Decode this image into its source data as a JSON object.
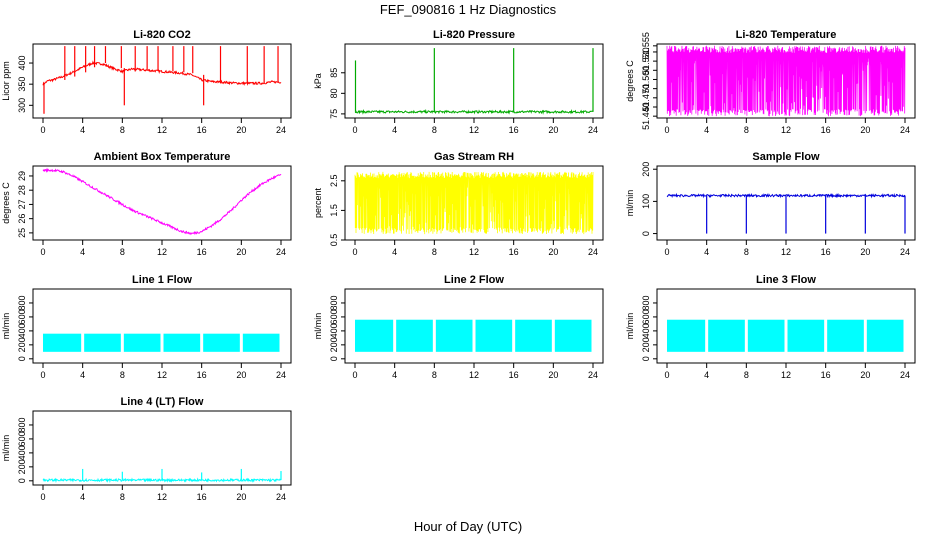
{
  "figure": {
    "title": "FEF_090816  1 Hz Diagnostics",
    "xlabel": "Hour of Day (UTC)"
  },
  "chart_data": [
    {
      "type": "line",
      "title": "Li-820 CO2",
      "ylabel": "Licor ppm",
      "color": "#ff0000",
      "xticks": [
        "0",
        "4",
        "8",
        "12",
        "16",
        "20",
        "24"
      ],
      "yticks": [
        300,
        350,
        400
      ],
      "xlim": [
        0,
        24
      ],
      "ylim": [
        270,
        445
      ],
      "x": [
        0,
        0.5,
        1,
        2,
        3,
        4,
        5,
        6,
        7,
        8,
        9,
        10,
        11,
        12,
        13,
        14,
        15,
        16,
        17,
        18,
        19,
        20,
        21,
        22,
        23,
        24
      ],
      "y": [
        350,
        358,
        360,
        368,
        378,
        390,
        400,
        398,
        388,
        380,
        386,
        384,
        382,
        380,
        378,
        376,
        372,
        360,
        356,
        355,
        353,
        352,
        352,
        352,
        355,
        355
      ],
      "spikes": [
        {
          "x": 0.1,
          "y": 280
        },
        {
          "x": 2.2,
          "y": 440
        },
        {
          "x": 3.2,
          "y": 440
        },
        {
          "x": 4.3,
          "y": 440
        },
        {
          "x": 5.2,
          "y": 440
        },
        {
          "x": 6.3,
          "y": 440
        },
        {
          "x": 7.9,
          "y": 440
        },
        {
          "x": 8.2,
          "y": 300
        },
        {
          "x": 9.3,
          "y": 440
        },
        {
          "x": 10.5,
          "y": 440
        },
        {
          "x": 11.6,
          "y": 440
        },
        {
          "x": 13.1,
          "y": 440
        },
        {
          "x": 14.2,
          "y": 440
        },
        {
          "x": 15.1,
          "y": 440
        },
        {
          "x": 16.2,
          "y": 300
        },
        {
          "x": 17.9,
          "y": 440
        },
        {
          "x": 20.6,
          "y": 440
        },
        {
          "x": 22.3,
          "y": 440
        },
        {
          "x": 23.7,
          "y": 440
        }
      ]
    },
    {
      "type": "line",
      "title": "Li-820 Pressure",
      "ylabel": "kPa",
      "color": "#00aa00",
      "xticks": [
        "0",
        "4",
        "8",
        "12",
        "16",
        "20",
        "24"
      ],
      "yticks": [
        75,
        80,
        85
      ],
      "xlim": [
        0,
        24
      ],
      "ylim": [
        74,
        92
      ],
      "x": [
        0,
        24
      ],
      "y": [
        75.5,
        75.5
      ],
      "spikes": [
        {
          "x": 0.05,
          "y": 88
        },
        {
          "x": 8,
          "y": 91
        },
        {
          "x": 16,
          "y": 91
        },
        {
          "x": 24,
          "y": 91
        }
      ]
    },
    {
      "type": "line",
      "title": "Li-820 Temperature",
      "ylabel": "degrees C",
      "color": "#ff00ff",
      "xticks": [
        "0",
        "4",
        "8",
        "12",
        "16",
        "20",
        "24"
      ],
      "yticks": [
        51.44,
        51.455,
        51.47,
        51.485,
        51.5,
        51.515,
        51.53,
        51.545,
        51.555
      ],
      "yticks_labeled": [
        "51.440",
        "51.470",
        "51.500",
        "51.530",
        "51.555"
      ],
      "xlim": [
        0,
        24
      ],
      "ylim": [
        51.437,
        51.558
      ],
      "y_low": 51.44,
      "y_high": 51.555
    },
    {
      "type": "line",
      "title": "Ambient Box Temperature",
      "ylabel": "degrees C",
      "color": "#ff00ff",
      "xticks": [
        "0",
        "4",
        "8",
        "12",
        "16",
        "20",
        "24"
      ],
      "yticks": [
        25,
        26,
        27,
        28,
        29
      ],
      "xlim": [
        0,
        24
      ],
      "ylim": [
        24.5,
        29.7
      ],
      "x": [
        0,
        1,
        2,
        3,
        4,
        5,
        6,
        7,
        8,
        9,
        10,
        11,
        12,
        13,
        14,
        15,
        16,
        17,
        18,
        19,
        20,
        21,
        22,
        23,
        24
      ],
      "y": [
        29.4,
        29.4,
        29.3,
        29.0,
        28.6,
        28.2,
        27.8,
        27.4,
        27.0,
        26.6,
        26.3,
        26.0,
        25.7,
        25.4,
        25.1,
        24.95,
        25.1,
        25.5,
        26.0,
        26.6,
        27.3,
        27.9,
        28.4,
        28.8,
        29.1
      ]
    },
    {
      "type": "line",
      "title": "Gas Stream RH",
      "ylabel": "percent",
      "color": "#ffff00",
      "xticks": [
        "0",
        "4",
        "8",
        "12",
        "16",
        "20",
        "24"
      ],
      "yticks": [
        0.5,
        1.5,
        2.5
      ],
      "xlim": [
        0,
        24
      ],
      "ylim": [
        0.5,
        3.0
      ],
      "y_low": 0.7,
      "y_high": 2.8
    },
    {
      "type": "line",
      "title": "Sample Flow",
      "ylabel": "ml/min",
      "color": "#0000dd",
      "xticks": [
        "0",
        "4",
        "8",
        "12",
        "16",
        "20",
        "24"
      ],
      "yticks": [
        0,
        100,
        200
      ],
      "xlim": [
        0,
        24
      ],
      "ylim": [
        -20,
        210
      ],
      "x": [
        0,
        24
      ],
      "y": [
        118,
        118
      ],
      "dips": [
        {
          "x": 4,
          "y": 0
        },
        {
          "x": 8,
          "y": 0
        },
        {
          "x": 12,
          "y": 0
        },
        {
          "x": 16,
          "y": 0
        },
        {
          "x": 20,
          "y": 0
        },
        {
          "x": 24,
          "y": 0
        }
      ]
    },
    {
      "type": "area",
      "title": "Line 1 Flow",
      "ylabel": "ml/min",
      "color": "#00ffff",
      "xticks": [
        "0",
        "4",
        "8",
        "12",
        "16",
        "20",
        "24"
      ],
      "yticks": [
        0,
        200,
        400,
        600,
        800
      ],
      "xlim": [
        0,
        24
      ],
      "ylim": [
        -60,
        1000
      ],
      "y_low": 100,
      "y_high": 360,
      "gaps": [
        4,
        8,
        12,
        16,
        20
      ]
    },
    {
      "type": "area",
      "title": "Line 2 Flow",
      "ylabel": "ml/min",
      "color": "#00ffff",
      "xticks": [
        "0",
        "4",
        "8",
        "12",
        "16",
        "20",
        "24"
      ],
      "yticks": [
        0,
        200,
        400,
        600,
        800
      ],
      "xlim": [
        0,
        24
      ],
      "ylim": [
        -60,
        1000
      ],
      "y_low": 100,
      "y_high": 560,
      "gaps": [
        4,
        8,
        12,
        16,
        20
      ]
    },
    {
      "type": "area",
      "title": "Line 3 Flow",
      "ylabel": "ml/min",
      "color": "#00ffff",
      "xticks": [
        "0",
        "4",
        "8",
        "12",
        "16",
        "20",
        "24"
      ],
      "yticks": [
        0,
        200,
        400,
        600,
        800
      ],
      "xlim": [
        0,
        24
      ],
      "ylim": [
        -60,
        1000
      ],
      "y_low": 100,
      "y_high": 560,
      "gaps": [
        4,
        8,
        12,
        16,
        20
      ]
    },
    {
      "type": "line",
      "title": "Line 4 (LT) Flow",
      "ylabel": "ml/min",
      "color": "#00ffff",
      "xticks": [
        "0",
        "4",
        "8",
        "12",
        "16",
        "20",
        "24"
      ],
      "yticks": [
        0,
        200,
        400,
        600,
        800
      ],
      "xlim": [
        0,
        24
      ],
      "ylim": [
        -60,
        1000
      ],
      "x": [
        0,
        24
      ],
      "y": [
        10,
        10
      ],
      "spikes": [
        {
          "x": 4,
          "y": 170
        },
        {
          "x": 8,
          "y": 130
        },
        {
          "x": 12,
          "y": 170
        },
        {
          "x": 16,
          "y": 120
        },
        {
          "x": 20,
          "y": 170
        },
        {
          "x": 24,
          "y": 140
        }
      ]
    }
  ]
}
